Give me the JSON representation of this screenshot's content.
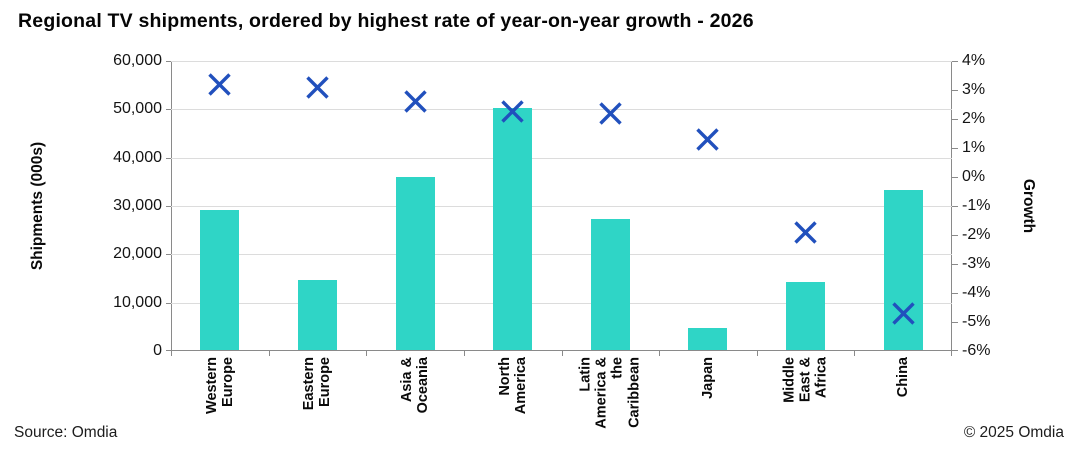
{
  "title": "Regional TV shipments, ordered by highest rate of year-on-year growth - 2026",
  "footer": {
    "source": "Source: Omdia",
    "copyright": "© 2025 Omdia"
  },
  "chart_data": {
    "type": "combo-bar-scatter",
    "title": "Regional TV shipments, ordered by highest rate of year-on-year growth - 2026",
    "categories": [
      "Western Europe",
      "Eastern Europe",
      "Asia & Oceania",
      "North America",
      "Latin America & the Caribbean",
      "Japan",
      "Middle East & Africa",
      "China"
    ],
    "category_display_labels": [
      "Western\nEurope",
      "Eastern\nEurope",
      "Asia &\nOceania",
      "North\nAmerica",
      "Latin\nAmerica &\nthe\nCaribbean",
      "Japan",
      "Middle\nEast &\nAfrica",
      "China"
    ],
    "series": [
      {
        "name": "Shipments (000s)",
        "type": "bar",
        "axis": "left",
        "values": [
          29200,
          14700,
          36100,
          50200,
          27300,
          4800,
          14200,
          33400
        ]
      },
      {
        "name": "Growth",
        "type": "scatter",
        "marker": "x",
        "axis": "right",
        "values": [
          3.2,
          3.1,
          2.6,
          2.25,
          2.2,
          1.3,
          -1.9,
          -4.7
        ],
        "unit": "%"
      }
    ],
    "left_axis": {
      "label": "Shipments (000s)",
      "min": 0,
      "max": 60000,
      "step": 10000,
      "tick_labels": [
        "60,000",
        "50,000",
        "40,000",
        "30,000",
        "20,000",
        "10,000",
        "0"
      ]
    },
    "right_axis": {
      "label": "Growth",
      "min": -6,
      "max": 4,
      "step": 1,
      "tick_labels": [
        "4%",
        "3%",
        "2%",
        "1%",
        "0%",
        "-1%",
        "-2%",
        "-3%",
        "-4%",
        "-5%",
        "-6%"
      ]
    },
    "layout": {
      "grid": "horizontal",
      "legend": "none",
      "category_labels_rotation_deg": -90
    },
    "colors": {
      "bar": "#2fd5c6",
      "marker": "#2150bd",
      "gridline": "#dcdcdc",
      "axis": "#8a8a8a"
    }
  }
}
